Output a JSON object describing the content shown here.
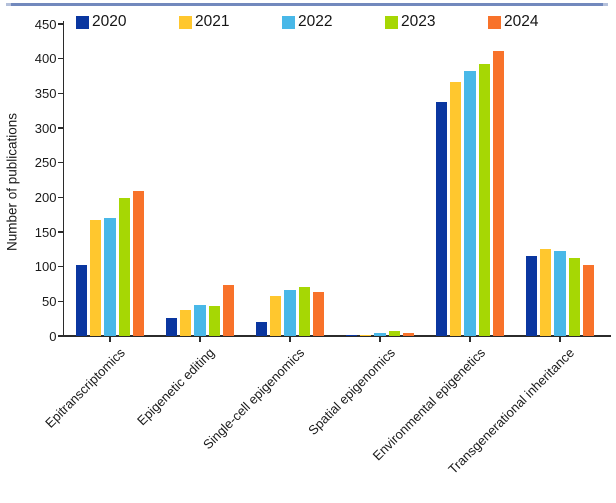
{
  "page": {
    "top_rule_color": "#7289bd",
    "background": "#ffffff",
    "axis_color": "#2b2b2b",
    "text_color": "#1a1a1a"
  },
  "chart_data": {
    "type": "bar",
    "title": "",
    "xlabel": "",
    "ylabel": "Number of publications",
    "ylim": [
      0,
      450
    ],
    "yticks": [
      0,
      50,
      100,
      150,
      200,
      250,
      300,
      350,
      400,
      450
    ],
    "grid": false,
    "legend_position": "top",
    "categories": [
      "Epitranscriptomics",
      "Epigenetic editing",
      "Single-cell epigenomics",
      "Spatial epigenomics",
      "Environmental epigenetics",
      "Transgenerational inheritance"
    ],
    "series": [
      {
        "name": "2020",
        "color": "#0a36a0",
        "values": [
          102,
          26,
          20,
          1,
          338,
          116
        ]
      },
      {
        "name": "2021",
        "color": "#ffc72e",
        "values": [
          168,
          38,
          58,
          2,
          367,
          126
        ]
      },
      {
        "name": "2022",
        "color": "#49b8e8",
        "values": [
          170,
          45,
          66,
          5,
          382,
          122
        ]
      },
      {
        "name": "2023",
        "color": "#a6d704",
        "values": [
          199,
          43,
          70,
          7,
          393,
          113
        ]
      },
      {
        "name": "2024",
        "color": "#f8722a",
        "values": [
          209,
          74,
          63,
          5,
          411,
          103
        ]
      }
    ]
  }
}
